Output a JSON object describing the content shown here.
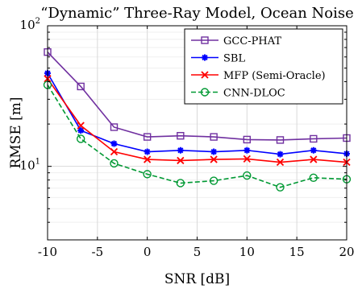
{
  "chart_data": {
    "type": "line",
    "title": "“Dynamic” Three-Ray Model, Ocean Noise",
    "xlabel": "SNR [dB]",
    "ylabel": "RMSE [m]",
    "xlim": [
      -10,
      20
    ],
    "ylim": [
      3,
      100
    ],
    "yscale": "log",
    "grid": true,
    "legend_position": "top-right",
    "x_ticks": [
      -10,
      -5,
      0,
      5,
      10,
      15,
      20
    ],
    "x_tick_labels": [
      "-10",
      "-5",
      "0",
      "5",
      "10",
      "15",
      "20"
    ],
    "y_ticks": [
      10,
      100
    ],
    "x": [
      -10,
      -6.67,
      -3.33,
      0,
      3.33,
      6.67,
      10,
      13.33,
      16.67,
      20
    ],
    "series": [
      {
        "name": "GCC-PHAT",
        "color": "#7030A0",
        "marker": "square",
        "linestyle": "solid",
        "values": [
          65,
          37,
          19,
          16.2,
          16.5,
          16.2,
          15.5,
          15.4,
          15.7,
          15.9
        ]
      },
      {
        "name": "SBL",
        "color": "#0000FF",
        "marker": "asterisk",
        "linestyle": "solid",
        "values": [
          46,
          18,
          14.5,
          12.7,
          13,
          12.7,
          13,
          12.2,
          13,
          12.3
        ]
      },
      {
        "name": "MFP (Semi-Oracle)",
        "color": "#FF0000",
        "marker": "x",
        "linestyle": "solid",
        "values": [
          42,
          19.5,
          12.7,
          11.2,
          11,
          11.2,
          11.3,
          10.7,
          11.2,
          10.7
        ]
      },
      {
        "name": "CNN-DLOC",
        "color": "#009933",
        "marker": "circle",
        "linestyle": "dashed",
        "values": [
          38,
          15.7,
          10.5,
          8.8,
          7.6,
          7.9,
          8.6,
          7.1,
          8.3,
          8.1
        ]
      }
    ]
  }
}
